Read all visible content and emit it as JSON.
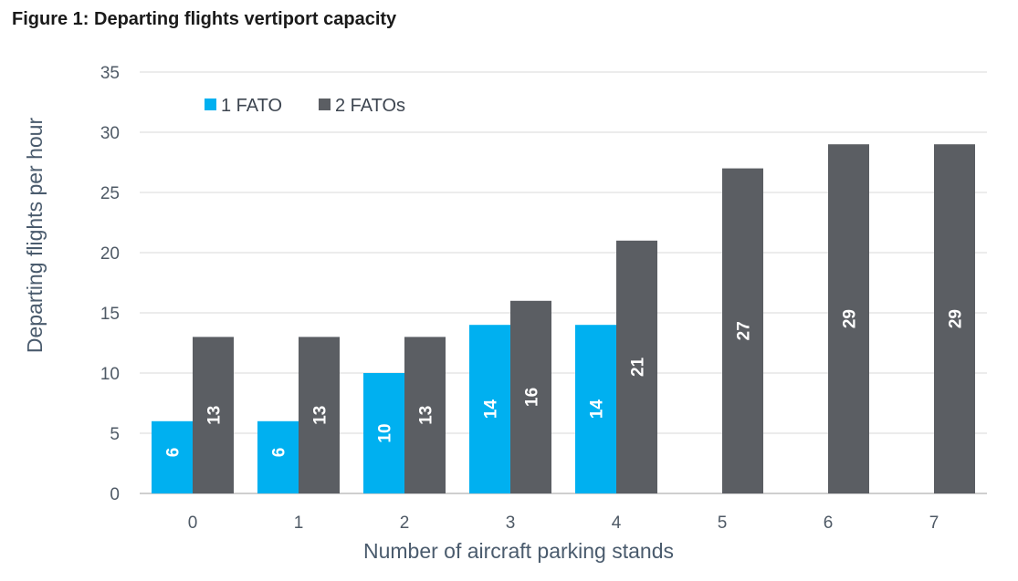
{
  "figure_title": "Figure 1: Departing flights vertiport capacity",
  "chart_data": {
    "type": "bar",
    "title": "Figure 1: Departing flights vertiport capacity",
    "xlabel": "Number of aircraft parking stands",
    "ylabel": "Departing flights per hour",
    "categories": [
      "0",
      "1",
      "2",
      "3",
      "4",
      "5",
      "6",
      "7"
    ],
    "series": [
      {
        "name": "1 FATO",
        "color": "#00b0f0",
        "values": [
          6,
          6,
          10,
          14,
          14,
          null,
          null,
          null
        ]
      },
      {
        "name": "2 FATOs",
        "color": "#5b5e63",
        "values": [
          13,
          13,
          13,
          16,
          21,
          27,
          29,
          29
        ]
      }
    ],
    "ylim": [
      0,
      35
    ],
    "yticks": [
      0,
      5,
      10,
      15,
      20,
      25,
      30,
      35
    ],
    "grid": true,
    "legend": "top-left",
    "data_labels": true
  }
}
